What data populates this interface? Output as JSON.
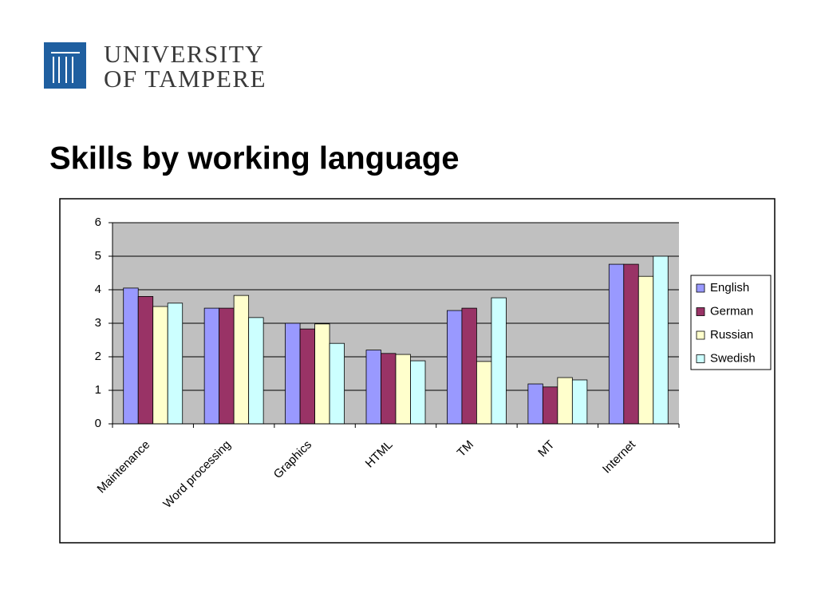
{
  "logo": {
    "lines": [
      "UNIVERSITY",
      "OF TAMPERE"
    ]
  },
  "title": "Skills by working language",
  "chart_data": {
    "type": "bar",
    "categories": [
      "Maintenance",
      "Word processing",
      "Graphics",
      "HTML",
      "TM",
      "MT",
      "Internet"
    ],
    "series": [
      {
        "name": "English",
        "color": "#9999ff",
        "values": [
          4.05,
          3.45,
          3.0,
          2.2,
          3.38,
          1.19,
          4.76
        ]
      },
      {
        "name": "German",
        "color": "#993366",
        "values": [
          3.8,
          3.45,
          2.83,
          2.1,
          3.45,
          1.1,
          4.76
        ]
      },
      {
        "name": "Russian",
        "color": "#ffffcc",
        "values": [
          3.5,
          3.83,
          2.98,
          2.07,
          1.86,
          1.38,
          4.4
        ]
      },
      {
        "name": "Swedish",
        "color": "#ccffff",
        "values": [
          3.6,
          3.17,
          2.4,
          1.88,
          3.76,
          1.31,
          5.0
        ]
      }
    ],
    "ylim": [
      0,
      6
    ],
    "yticks": [
      0,
      1,
      2,
      3,
      4,
      5,
      6
    ],
    "grid": true,
    "legend": "right",
    "plot_background": "#c0c0c0"
  }
}
